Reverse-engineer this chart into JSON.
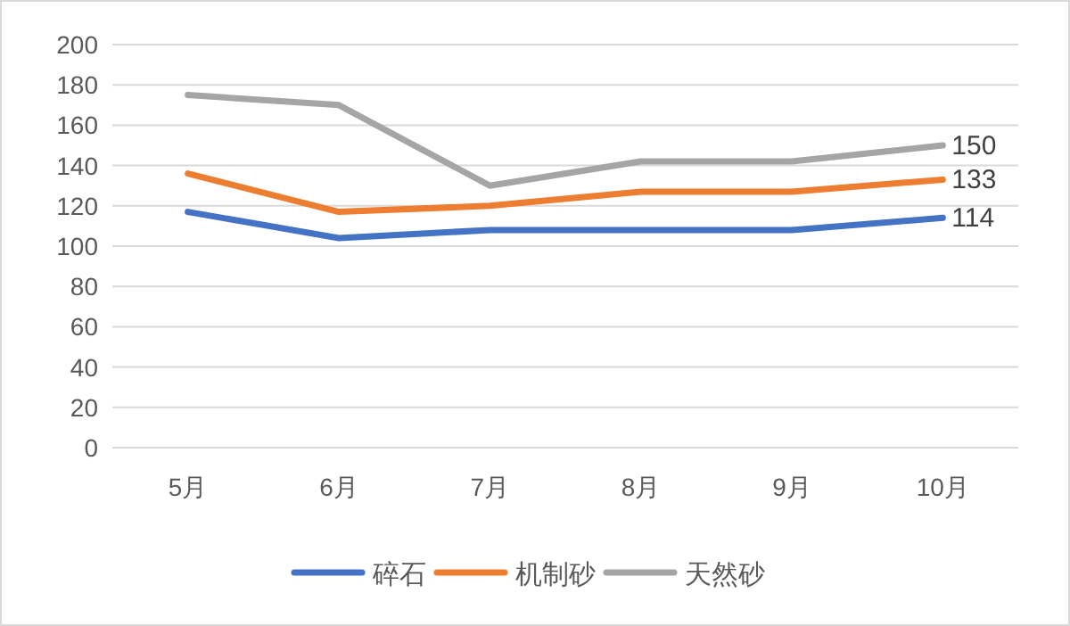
{
  "chart_data": {
    "type": "line",
    "categories": [
      "5月",
      "6月",
      "7月",
      "8月",
      "9月",
      "10月"
    ],
    "series": [
      {
        "name": "碎石",
        "color": "#4472c4",
        "values": [
          117,
          104,
          108,
          108,
          108,
          114
        ],
        "value_labels": [
          null,
          null,
          null,
          null,
          null,
          "114"
        ]
      },
      {
        "name": "机制砂",
        "color": "#ed7d31",
        "values": [
          136,
          117,
          120,
          127,
          127,
          133
        ],
        "value_labels": [
          null,
          null,
          null,
          null,
          null,
          "133"
        ]
      },
      {
        "name": "天然砂",
        "color": "#a5a5a5",
        "values": [
          175,
          170,
          130,
          142,
          142,
          150
        ],
        "value_labels": [
          null,
          null,
          null,
          null,
          null,
          "150"
        ]
      }
    ],
    "ylim": [
      0,
      200
    ],
    "yticks": [
      0,
      20,
      40,
      60,
      80,
      100,
      120,
      140,
      160,
      180,
      200
    ],
    "grid": "y",
    "legend": "bottom",
    "marker": "none",
    "line_style": "solid"
  }
}
